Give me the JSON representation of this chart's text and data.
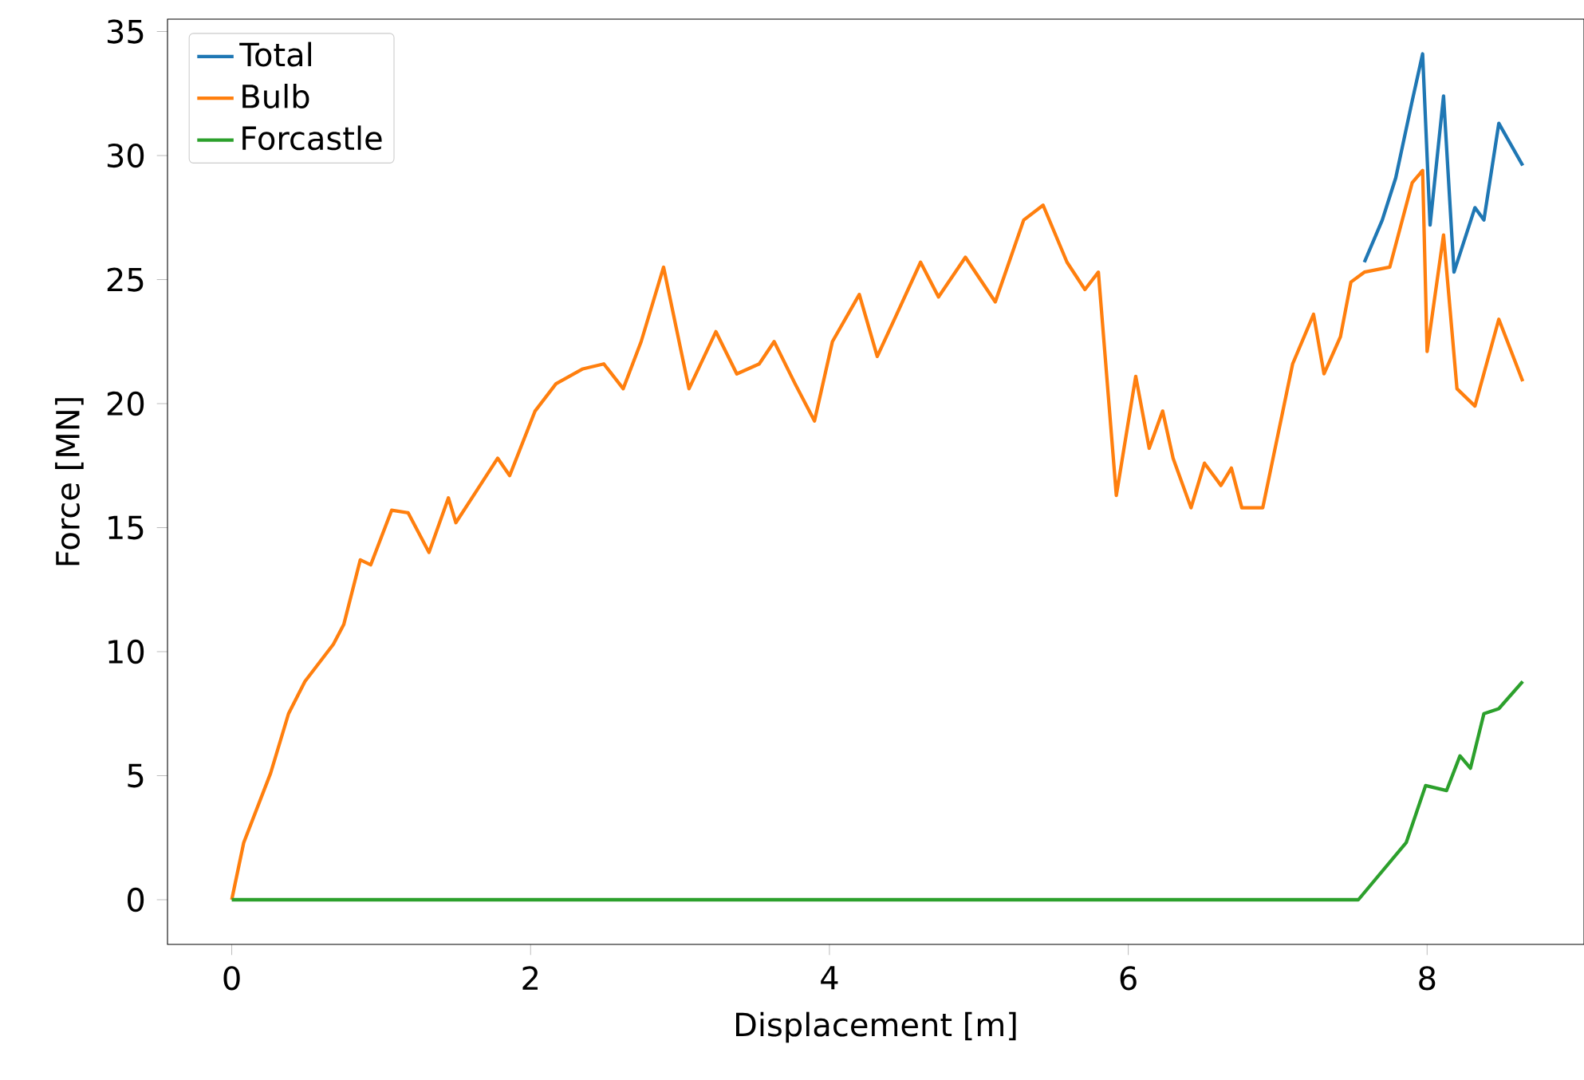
{
  "chart_data": {
    "type": "line",
    "xlabel": "Displacement [m]",
    "ylabel": "Force [MN]",
    "xlim": [
      -0.43,
      9.05
    ],
    "ylim": [
      -1.8,
      35.5
    ],
    "xticks": [
      0,
      2,
      4,
      6,
      8
    ],
    "yticks": [
      0,
      5,
      10,
      15,
      20,
      25,
      30,
      35
    ],
    "grid": false,
    "legend": "top left",
    "marker": "none",
    "line_style": "solid",
    "series": [
      {
        "name": "Total",
        "color": "#1f77b4",
        "x": [
          7.58,
          7.7,
          7.79,
          7.9,
          7.97,
          8.02,
          8.11,
          8.18,
          8.32,
          8.38,
          8.48,
          8.64
        ],
        "values": [
          25.7,
          27.4,
          29.1,
          32.2,
          34.1,
          27.2,
          32.4,
          25.3,
          27.9,
          27.4,
          31.3,
          29.6
        ]
      },
      {
        "name": "Bulb",
        "color": "#ff7f0e",
        "x": [
          0,
          0.08,
          0.26,
          0.38,
          0.49,
          0.68,
          0.75,
          0.86,
          0.93,
          1.07,
          1.18,
          1.32,
          1.45,
          1.5,
          1.64,
          1.78,
          1.86,
          2.03,
          2.17,
          2.35,
          2.49,
          2.62,
          2.74,
          2.89,
          3.06,
          3.24,
          3.38,
          3.53,
          3.63,
          3.77,
          3.9,
          4.02,
          4.2,
          4.32,
          4.45,
          4.61,
          4.73,
          4.91,
          5.11,
          5.3,
          5.43,
          5.59,
          5.71,
          5.8,
          5.92,
          6.05,
          6.14,
          6.23,
          6.3,
          6.42,
          6.51,
          6.62,
          6.69,
          6.76,
          6.9,
          7.1,
          7.24,
          7.31,
          7.42,
          7.49,
          7.58,
          7.75,
          7.9,
          7.97,
          8.0,
          8.11,
          8.2,
          8.32,
          8.48,
          8.64
        ],
        "values": [
          0,
          2.3,
          5.1,
          7.5,
          8.8,
          10.3,
          11.1,
          13.7,
          13.5,
          15.7,
          15.6,
          14.0,
          16.2,
          15.2,
          16.5,
          17.8,
          17.1,
          19.7,
          20.8,
          21.4,
          21.6,
          20.6,
          22.5,
          25.5,
          20.6,
          22.9,
          21.2,
          21.6,
          22.5,
          20.8,
          19.3,
          22.5,
          24.4,
          21.9,
          23.6,
          25.7,
          24.3,
          25.9,
          24.1,
          27.4,
          28.0,
          25.7,
          24.6,
          25.3,
          16.3,
          21.1,
          18.2,
          19.7,
          17.8,
          15.8,
          17.6,
          16.7,
          17.4,
          15.8,
          15.8,
          21.6,
          23.6,
          21.2,
          22.7,
          24.9,
          25.3,
          25.5,
          28.9,
          29.4,
          22.1,
          26.8,
          20.6,
          19.9,
          23.4,
          20.9
        ]
      },
      {
        "name": "Forcastle",
        "color": "#2ca02c",
        "x": [
          0,
          7.54,
          7.86,
          7.99,
          8.13,
          8.22,
          8.29,
          8.38,
          8.48,
          8.64
        ],
        "values": [
          0,
          0,
          2.3,
          4.6,
          4.4,
          5.8,
          5.3,
          7.5,
          7.7,
          8.8
        ]
      }
    ]
  }
}
